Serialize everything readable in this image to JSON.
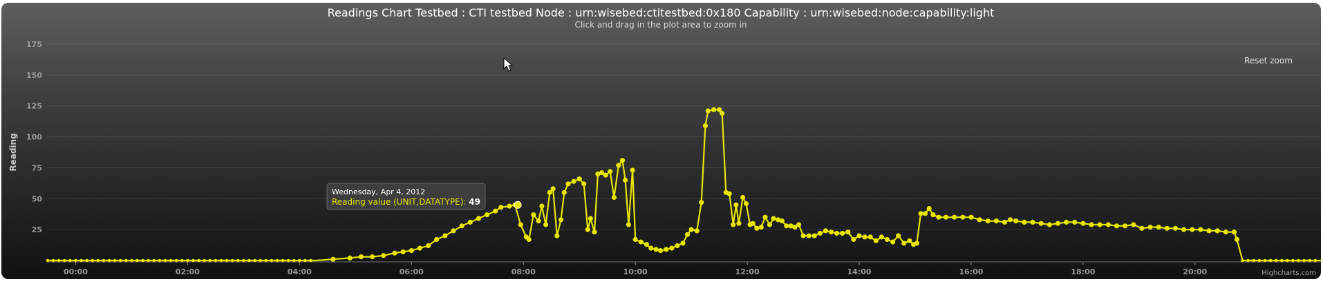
{
  "chart_data": {
    "type": "line",
    "title": "Readings Chart Testbed : CTI testbed Node : urn:wisebed:ctitestbed:0x180 Capability : urn:wisebed:node:capability:light",
    "subtitle": "Click and drag in the plot area to zoom in",
    "xlabel": "",
    "ylabel": "Reading",
    "x_unit": "hours",
    "xlim": [
      -0.5,
      22.25
    ],
    "ylim": [
      0,
      175
    ],
    "x_ticks": [
      "00:00",
      "02:00",
      "04:00",
      "06:00",
      "08:00",
      "10:00",
      "12:00",
      "14:00",
      "16:00",
      "18:00",
      "20:00"
    ],
    "y_ticks": [
      "25",
      "50",
      "75",
      "100",
      "125",
      "150",
      "175"
    ],
    "grid": true,
    "legend": "none",
    "series_color": "#e6e600",
    "series": [
      {
        "name": "Reading value (UNIT,DATATYPE)",
        "points": [
          [
            -0.5,
            0
          ],
          [
            0,
            0
          ],
          [
            0.5,
            0
          ],
          [
            1,
            0
          ],
          [
            1.5,
            0
          ],
          [
            2,
            0
          ],
          [
            2.5,
            0
          ],
          [
            3,
            0
          ],
          [
            3.5,
            0
          ],
          [
            4,
            0
          ],
          [
            4.3,
            0
          ],
          [
            4.6,
            1
          ],
          [
            4.9,
            2
          ],
          [
            5.1,
            3
          ],
          [
            5.3,
            3
          ],
          [
            5.5,
            4
          ],
          [
            5.7,
            6
          ],
          [
            5.85,
            7
          ],
          [
            6,
            8
          ],
          [
            6.15,
            10
          ],
          [
            6.3,
            12
          ],
          [
            6.45,
            17
          ],
          [
            6.6,
            20
          ],
          [
            6.75,
            24
          ],
          [
            6.9,
            28
          ],
          [
            7.05,
            31
          ],
          [
            7.2,
            34
          ],
          [
            7.35,
            37
          ],
          [
            7.5,
            40
          ],
          [
            7.6,
            43
          ],
          [
            7.75,
            44
          ],
          [
            7.85,
            45
          ],
          [
            7.95,
            29
          ],
          [
            8.05,
            19
          ],
          [
            8.1,
            17
          ],
          [
            8.18,
            37
          ],
          [
            8.27,
            32
          ],
          [
            8.33,
            44
          ],
          [
            8.4,
            29
          ],
          [
            8.47,
            55
          ],
          [
            8.53,
            58
          ],
          [
            8.6,
            20
          ],
          [
            8.67,
            33
          ],
          [
            8.73,
            55
          ],
          [
            8.8,
            62
          ],
          [
            8.9,
            64
          ],
          [
            9.0,
            66
          ],
          [
            9.08,
            62
          ],
          [
            9.15,
            25
          ],
          [
            9.2,
            34
          ],
          [
            9.27,
            23
          ],
          [
            9.33,
            70
          ],
          [
            9.4,
            71
          ],
          [
            9.47,
            69
          ],
          [
            9.55,
            72
          ],
          [
            9.62,
            51
          ],
          [
            9.7,
            77
          ],
          [
            9.77,
            81
          ],
          [
            9.82,
            65
          ],
          [
            9.88,
            29
          ],
          [
            9.95,
            73
          ],
          [
            10.0,
            17
          ],
          [
            10.1,
            15
          ],
          [
            10.2,
            13
          ],
          [
            10.28,
            10
          ],
          [
            10.37,
            9
          ],
          [
            10.45,
            8
          ],
          [
            10.55,
            9
          ],
          [
            10.65,
            10
          ],
          [
            10.75,
            12
          ],
          [
            10.85,
            14
          ],
          [
            10.93,
            21
          ],
          [
            11.0,
            25
          ],
          [
            11.1,
            24
          ],
          [
            11.18,
            47
          ],
          [
            11.25,
            109
          ],
          [
            11.3,
            121
          ],
          [
            11.4,
            122
          ],
          [
            11.5,
            122
          ],
          [
            11.55,
            119
          ],
          [
            11.62,
            55
          ],
          [
            11.68,
            54
          ],
          [
            11.75,
            29
          ],
          [
            11.8,
            45
          ],
          [
            11.85,
            30
          ],
          [
            11.92,
            51
          ],
          [
            11.98,
            46
          ],
          [
            12.05,
            29
          ],
          [
            12.1,
            30
          ],
          [
            12.17,
            26
          ],
          [
            12.25,
            27
          ],
          [
            12.32,
            35
          ],
          [
            12.4,
            29
          ],
          [
            12.47,
            34
          ],
          [
            12.55,
            33
          ],
          [
            12.62,
            32
          ],
          [
            12.7,
            28
          ],
          [
            12.78,
            28
          ],
          [
            12.85,
            27
          ],
          [
            12.92,
            29
          ],
          [
            13.0,
            20
          ],
          [
            13.1,
            20
          ],
          [
            13.2,
            20
          ],
          [
            13.3,
            22
          ],
          [
            13.4,
            24
          ],
          [
            13.5,
            23
          ],
          [
            13.6,
            22
          ],
          [
            13.7,
            22
          ],
          [
            13.8,
            23
          ],
          [
            13.9,
            17
          ],
          [
            14.0,
            20
          ],
          [
            14.1,
            19
          ],
          [
            14.2,
            19
          ],
          [
            14.3,
            16
          ],
          [
            14.4,
            19
          ],
          [
            14.5,
            17
          ],
          [
            14.6,
            15
          ],
          [
            14.7,
            20
          ],
          [
            14.8,
            14
          ],
          [
            14.9,
            16
          ],
          [
            14.97,
            13
          ],
          [
            15.03,
            14
          ],
          [
            15.1,
            38
          ],
          [
            15.18,
            38
          ],
          [
            15.25,
            42
          ],
          [
            15.32,
            37
          ],
          [
            15.42,
            35
          ],
          [
            15.55,
            35
          ],
          [
            15.7,
            35
          ],
          [
            15.85,
            35
          ],
          [
            16.0,
            35
          ],
          [
            16.15,
            33
          ],
          [
            16.3,
            32
          ],
          [
            16.45,
            32
          ],
          [
            16.6,
            31
          ],
          [
            16.7,
            33
          ],
          [
            16.8,
            32
          ],
          [
            16.95,
            31
          ],
          [
            17.1,
            31
          ],
          [
            17.25,
            30
          ],
          [
            17.4,
            29
          ],
          [
            17.55,
            30
          ],
          [
            17.7,
            31
          ],
          [
            17.85,
            31
          ],
          [
            18.0,
            30
          ],
          [
            18.15,
            29
          ],
          [
            18.3,
            29
          ],
          [
            18.45,
            29
          ],
          [
            18.6,
            28
          ],
          [
            18.75,
            28
          ],
          [
            18.9,
            29
          ],
          [
            19.05,
            26
          ],
          [
            19.2,
            27
          ],
          [
            19.35,
            27
          ],
          [
            19.5,
            26
          ],
          [
            19.65,
            26
          ],
          [
            19.8,
            25
          ],
          [
            19.95,
            25
          ],
          [
            20.1,
            25
          ],
          [
            20.25,
            24
          ],
          [
            20.4,
            24
          ],
          [
            20.55,
            23
          ],
          [
            20.7,
            23
          ],
          [
            20.75,
            17
          ],
          [
            20.85,
            0
          ],
          [
            21.0,
            0
          ],
          [
            21.3,
            0
          ],
          [
            21.6,
            0
          ],
          [
            21.9,
            0
          ],
          [
            22.25,
            0
          ]
        ]
      }
    ],
    "tooltip": {
      "date": "Wednesday, Apr 4, 2012",
      "series_label": "Reading value (UNIT,DATATYPE)",
      "separator": ": ",
      "value": "49",
      "x": 7.9,
      "y": 45
    },
    "reset_label": "Reset zoom",
    "credits": "Highcharts.com"
  }
}
